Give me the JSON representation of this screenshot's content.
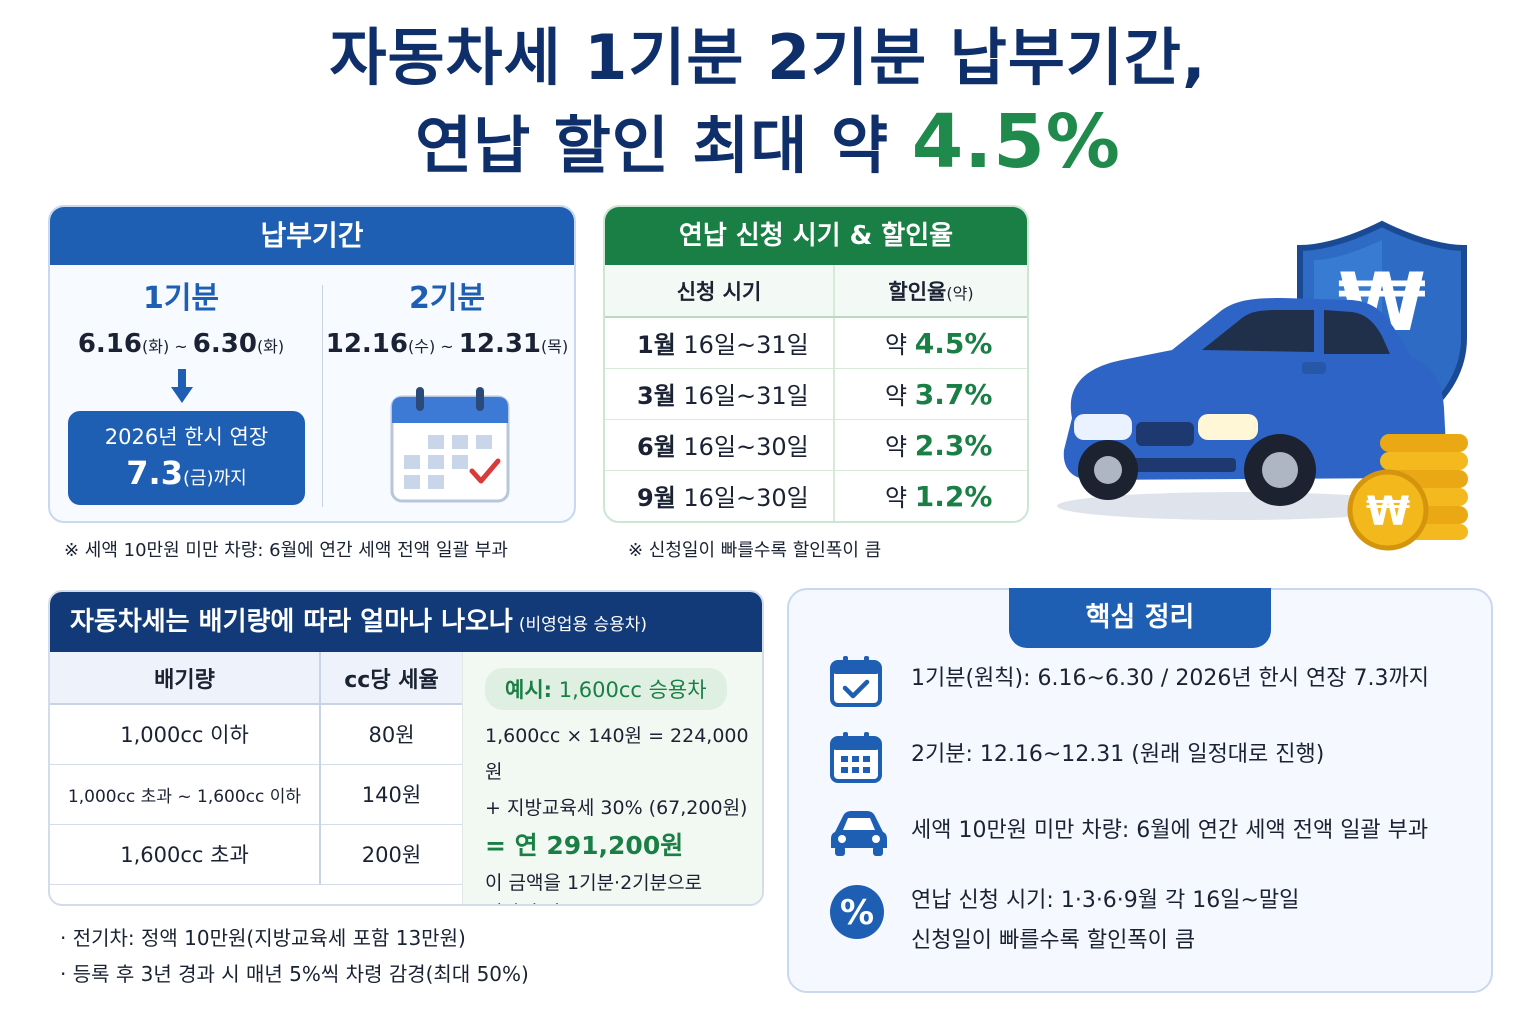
{
  "title": {
    "line1": "자동차세 1기분 2기분 납부기간,",
    "line2_prefix": "연납 할인 최대 약 ",
    "line2_pct": "4.5%"
  },
  "period_panel": {
    "header": "납부기간",
    "p1": {
      "title": "1기분",
      "start": "6.16",
      "start_day": "(화)",
      "sep": " ~ ",
      "end": "6.30",
      "end_day": "(화)"
    },
    "p2": {
      "title": "2기분",
      "start": "12.16",
      "start_day": "(수)",
      "sep": " ~ ",
      "end": "12.31",
      "end_day": "(목)"
    },
    "extension": {
      "line1": "2026년 한시 연장",
      "date": "7.3",
      "day": "(금)",
      "suffix": "까지"
    },
    "note": "※ 세액 10만원 미만 차량: 6월에 연간 세액 전액 일괄 부과"
  },
  "annual_panel": {
    "header": "연납 신청 시기 & 할인율",
    "col_time": "신청 시기",
    "col_rate": "할인율",
    "col_rate_suffix": "(약)",
    "rows": [
      {
        "month": "1월",
        "range": " 16일~31일",
        "prefix": "약 ",
        "rate": "4.5%"
      },
      {
        "month": "3월",
        "range": " 16일~31일",
        "prefix": "약 ",
        "rate": "3.7%"
      },
      {
        "month": "6월",
        "range": " 16일~30일",
        "prefix": "약 ",
        "rate": "2.3%"
      },
      {
        "month": "9월",
        "range": " 16일~30일",
        "prefix": "약 ",
        "rate": "1.2%"
      }
    ],
    "note": "※ 신청일이 빠를수록 할인폭이 큼"
  },
  "tax_panel": {
    "header": "자동차세는 배기량에 따라 얼마나 나오나",
    "header_sub": "(비영업용 승용차)",
    "col_cc": "배기량",
    "col_rate": "cc당 세율",
    "rows": [
      {
        "cc": "1,000cc  이하",
        "rate": "80원"
      },
      {
        "cc": "1,000cc 초과 ~ 1,600cc 이하",
        "rate": "140원"
      },
      {
        "cc": "1,600cc  초과",
        "rate": "200원"
      }
    ],
    "example": {
      "badge_label": "예시:",
      "badge_value": " 1,600cc 승용차",
      "calc1": "1,600cc × 140원 = 224,000원",
      "calc2": "+ 지방교육세 30% (67,200원)",
      "total": "= 연 291,200원",
      "tail1": "이 금액을 1기분·2기분으로",
      "tail2": "절반씩 납부"
    }
  },
  "bullets": [
    "· 전기차: 정액 10만원(지방교육세 포함 13만원)",
    "· 등록 후 3년 경과 시 매년 5%씩 차령 감경(최대 50%)"
  ],
  "summary_panel": {
    "header": "핵심 정리",
    "items": [
      {
        "icon": "calendar-check-icon",
        "text": "1기분(원칙): 6.16~6.30 / 2026년 한시 연장 7.3까지"
      },
      {
        "icon": "calendar-icon",
        "text": "2기분: 12.16~12.31 (원래 일정대로 진행)"
      },
      {
        "icon": "car-icon",
        "text": "세액 10만원 미만 차량: 6월에 연간 세액 전액 일괄 부과"
      },
      {
        "icon": "percent-icon",
        "text": "연납 신청 시기: 1·3·6·9월 각 16일~말일",
        "text2": "신청일이 빠를수록 할인폭이 큼"
      }
    ]
  },
  "illustration": {
    "shield_symbol": "₩",
    "coin_symbol": "₩"
  },
  "colors": {
    "navy": "#0f2f6b",
    "blue": "#1f5fb3",
    "green": "#1a7f45"
  }
}
